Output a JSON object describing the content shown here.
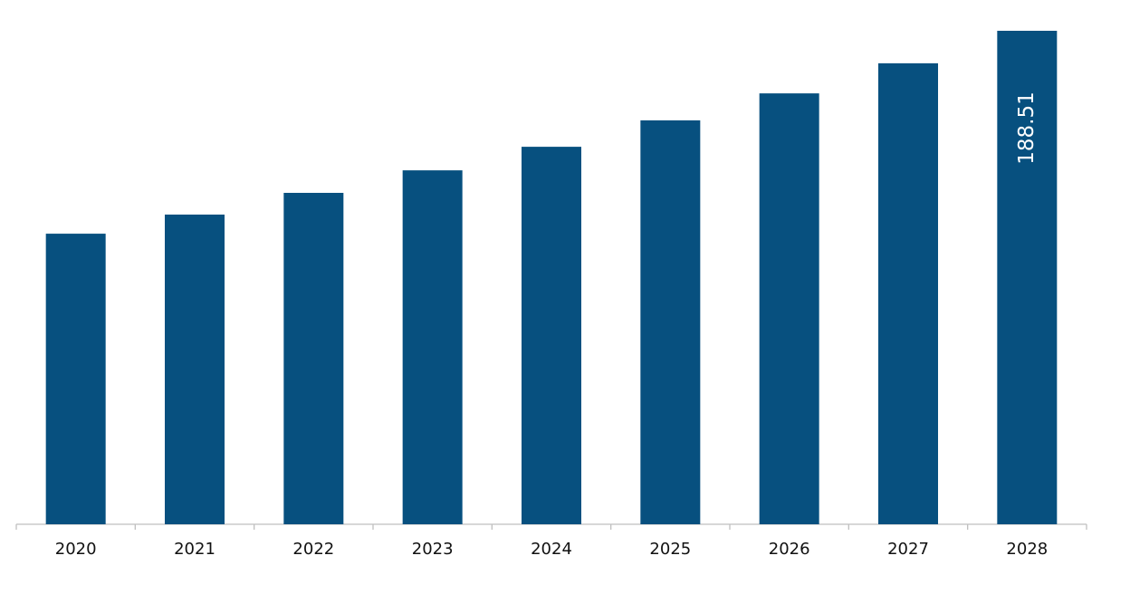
{
  "chart_data": {
    "type": "bar",
    "categories": [
      "2020",
      "2021",
      "2022",
      "2023",
      "2024",
      "2025",
      "2026",
      "2027",
      "2028"
    ],
    "values": [
      111.0,
      118.3,
      126.6,
      135.2,
      144.2,
      154.3,
      164.6,
      176.1,
      188.51
    ],
    "value_labels": [
      null,
      null,
      null,
      null,
      null,
      null,
      null,
      null,
      "188.51"
    ],
    "color": "#07507f"
  }
}
